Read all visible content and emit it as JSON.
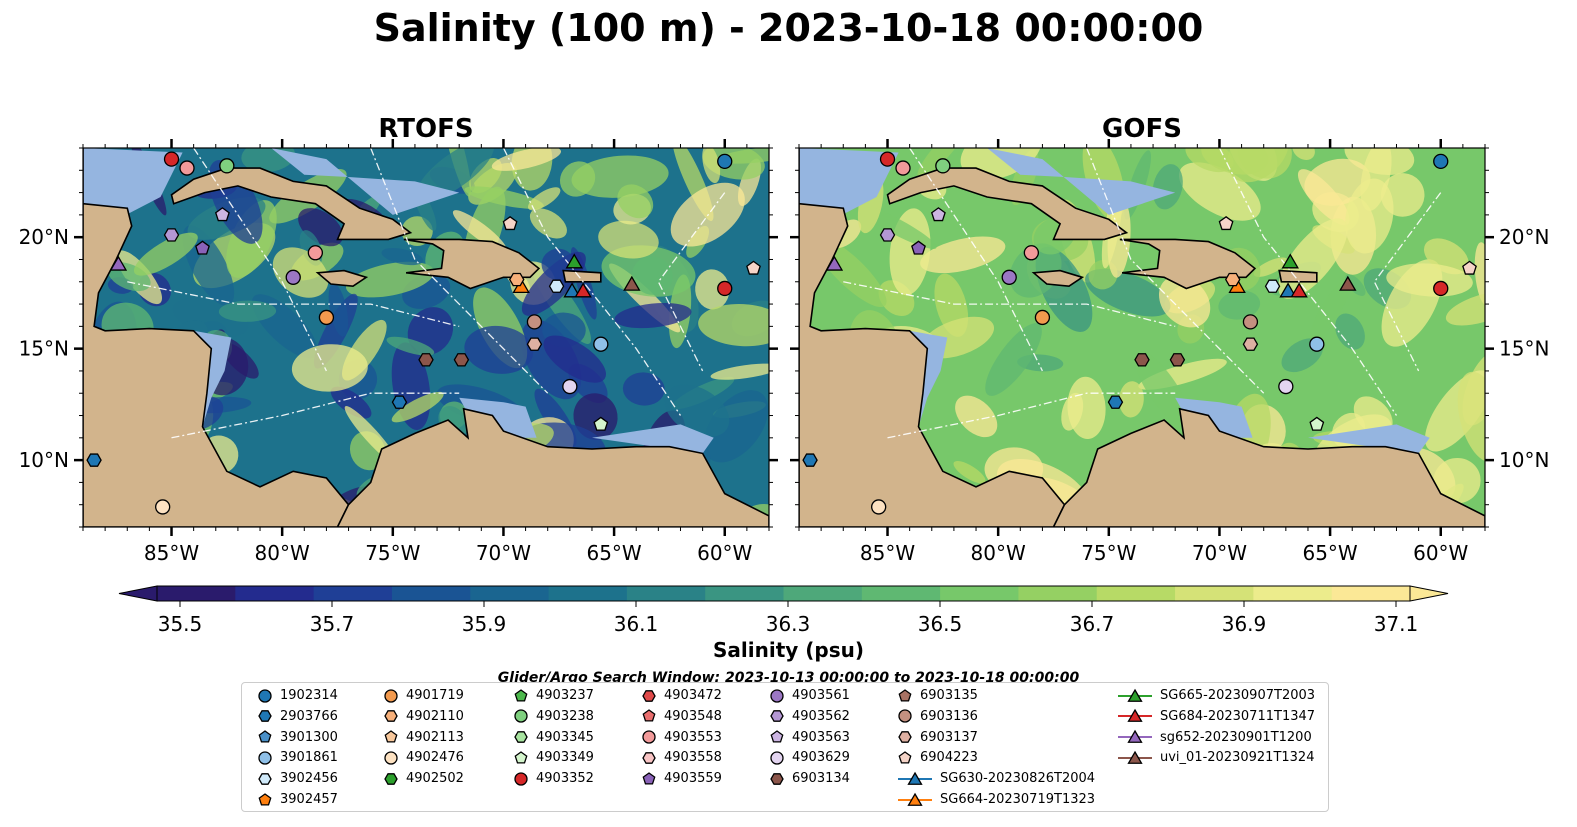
{
  "title": "Salinity (100 m) - 2023-10-18 00:00:00",
  "panels": [
    {
      "name": "RTOFS"
    },
    {
      "name": "GOFS"
    }
  ],
  "colors": {
    "land": "#d2b48c",
    "shelf": "#95b5e0",
    "deep_ocean": "#2a1b6c",
    "colormap": [
      "#2a1b6c",
      "#232b8e",
      "#1f3f96",
      "#1a5494",
      "#1a6590",
      "#1d728c",
      "#2a8287",
      "#3a9582",
      "#4ea87a",
      "#5fb872",
      "#77c86a",
      "#95d063",
      "#b7da66",
      "#d5e277",
      "#ecec8c",
      "#fbe896"
    ]
  },
  "chart_data": [
    {
      "type": "heatmap",
      "title": "RTOFS",
      "xlabel": "",
      "ylabel": "",
      "x_ticks": [
        "85°W",
        "80°W",
        "75°W",
        "70°W",
        "65°W",
        "60°W"
      ],
      "y_ticks": [
        "20°N",
        "15°N",
        "10°N"
      ],
      "x_tick_values": [
        -85,
        -80,
        -75,
        -70,
        -65,
        -60
      ],
      "y_tick_values": [
        20,
        15,
        10
      ],
      "xlim": [
        -89,
        -58
      ],
      "ylim": [
        7,
        24
      ]
    },
    {
      "type": "heatmap",
      "title": "GOFS",
      "xlabel": "",
      "ylabel": "",
      "x_ticks": [
        "85°W",
        "80°W",
        "75°W",
        "70°W",
        "65°W",
        "60°W"
      ],
      "y_ticks": [
        "20°N",
        "15°N",
        "10°N"
      ],
      "x_tick_values": [
        -85,
        -80,
        -75,
        -70,
        -65,
        -60
      ],
      "y_tick_values": [
        20,
        15,
        10
      ],
      "xlim": [
        -89,
        -58
      ],
      "ylim": [
        7,
        24
      ]
    }
  ],
  "colorbar": {
    "label": "Salinity (psu)",
    "ticks": [
      "35.5",
      "35.7",
      "35.9",
      "36.1",
      "36.3",
      "36.5",
      "36.7",
      "36.9",
      "37.1"
    ],
    "range": [
      35.5,
      37.2
    ]
  },
  "search_window": "Glider/Argo Search Window: 2023-10-13 00:00:00 to 2023-10-18 00:00:00",
  "legend": [
    {
      "label": "1902314",
      "marker": "circle",
      "color": "#1f77b4"
    },
    {
      "label": "2903766",
      "marker": "hexagon",
      "color": "#1f77b4"
    },
    {
      "label": "3901300",
      "marker": "pentagon",
      "color": "#4a90c8"
    },
    {
      "label": "3901861",
      "marker": "circle",
      "color": "#8fc0e8"
    },
    {
      "label": "3902456",
      "marker": "hexagon",
      "color": "#d0eafa"
    },
    {
      "label": "3902457",
      "marker": "pentagon",
      "color": "#ff7f0e"
    },
    {
      "label": "4901719",
      "marker": "circle",
      "color": "#f39a4e"
    },
    {
      "label": "4902110",
      "marker": "hexagon",
      "color": "#f7b07a"
    },
    {
      "label": "4902113",
      "marker": "pentagon",
      "color": "#f8c89c"
    },
    {
      "label": "4902476",
      "marker": "circle",
      "color": "#fde2c2"
    },
    {
      "label": "4902502",
      "marker": "hexagon",
      "color": "#2ca02c"
    },
    {
      "label": "4903237",
      "marker": "pentagon",
      "color": "#4cb84c"
    },
    {
      "label": "4903238",
      "marker": "circle",
      "color": "#7fd07f"
    },
    {
      "label": "4903345",
      "marker": "hexagon",
      "color": "#a8e4a0"
    },
    {
      "label": "4903349",
      "marker": "pentagon",
      "color": "#d4f5cc"
    },
    {
      "label": "4903352",
      "marker": "circle",
      "color": "#d62728"
    },
    {
      "label": "4903472",
      "marker": "hexagon",
      "color": "#e04a4a"
    },
    {
      "label": "4903548",
      "marker": "pentagon",
      "color": "#ea6f6f"
    },
    {
      "label": "4903553",
      "marker": "circle",
      "color": "#f29a9a"
    },
    {
      "label": "4903558",
      "marker": "hexagon",
      "color": "#f8c4c4"
    },
    {
      "label": "4903559",
      "marker": "pentagon",
      "color": "#8a62b8"
    },
    {
      "label": "4903561",
      "marker": "circle",
      "color": "#9b77c4"
    },
    {
      "label": "4903562",
      "marker": "hexagon",
      "color": "#b497d4"
    },
    {
      "label": "4903563",
      "marker": "pentagon",
      "color": "#ccb5e2"
    },
    {
      "label": "4903629",
      "marker": "circle",
      "color": "#e3d4f0"
    },
    {
      "label": "6903134",
      "marker": "hexagon",
      "color": "#8c564b"
    },
    {
      "label": "6903135",
      "marker": "pentagon",
      "color": "#a87264"
    },
    {
      "label": "6903136",
      "marker": "circle",
      "color": "#c49080"
    },
    {
      "label": "6903137",
      "marker": "hexagon",
      "color": "#deb0a2"
    },
    {
      "label": "6904223",
      "marker": "pentagon",
      "color": "#f5d4c8"
    },
    {
      "label": "SG630-20230826T2004",
      "marker": "triangle-line",
      "color": "#1f77b4"
    },
    {
      "label": "SG664-20230719T1323",
      "marker": "triangle-line",
      "color": "#ff7f0e"
    },
    {
      "label": "SG665-20230907T2003",
      "marker": "triangle-line",
      "color": "#2ca02c"
    },
    {
      "label": "SG684-20230711T1347",
      "marker": "triangle-line",
      "color": "#d62728"
    },
    {
      "label": "sg652-20230901T1200",
      "marker": "triangle-line",
      "color": "#9467bd"
    },
    {
      "label": "uvi_01-20230921T1324",
      "marker": "triangle-line",
      "color": "#8c564b"
    }
  ],
  "map_markers": [
    {
      "id": "1902314",
      "lon": -60.0,
      "lat": 23.4
    },
    {
      "id": "4903352",
      "lon": -85.0,
      "lat": 23.5
    },
    {
      "id": "4903553",
      "lon": -84.3,
      "lat": 23.1
    },
    {
      "id": "4903238",
      "lon": -82.5,
      "lat": 23.2
    },
    {
      "id": "4903563",
      "lon": -82.7,
      "lat": 21.0
    },
    {
      "id": "4903562",
      "lon": -85.0,
      "lat": 20.1
    },
    {
      "id": "4903559",
      "lon": -83.6,
      "lat": 19.5
    },
    {
      "id": "sg652-20230901T1200",
      "lon": -87.4,
      "lat": 18.8
    },
    {
      "id": "4903561",
      "lon": -79.5,
      "lat": 18.2
    },
    {
      "id": "4903553",
      "lon": -78.5,
      "lat": 19.3
    },
    {
      "id": "6904223",
      "lon": -69.7,
      "lat": 20.6
    },
    {
      "id": "4901719",
      "lon": -78.0,
      "lat": 16.4
    },
    {
      "id": "6903134",
      "lon": -73.5,
      "lat": 14.5
    },
    {
      "id": "6903134",
      "lon": -71.9,
      "lat": 14.5
    },
    {
      "id": "2903766",
      "lon": -74.7,
      "lat": 12.6
    },
    {
      "id": "SG664-20230719T1323",
      "lon": -69.2,
      "lat": 17.8
    },
    {
      "id": "4902110",
      "lon": -69.4,
      "lat": 18.1
    },
    {
      "id": "SG665-20230907T2003",
      "lon": -66.8,
      "lat": 18.9
    },
    {
      "id": "3902456",
      "lon": -67.6,
      "lat": 17.8
    },
    {
      "id": "SG630-20230826T2004",
      "lon": -66.9,
      "lat": 17.6
    },
    {
      "id": "SG684-20230711T1347",
      "lon": -66.4,
      "lat": 17.6
    },
    {
      "id": "uvi_01-20230921T1324",
      "lon": -64.2,
      "lat": 17.9
    },
    {
      "id": "4903352",
      "lon": -60.0,
      "lat": 17.7
    },
    {
      "id": "6904223",
      "lon": -58.7,
      "lat": 18.6
    },
    {
      "id": "6903136",
      "lon": -68.6,
      "lat": 16.2
    },
    {
      "id": "6903137",
      "lon": -68.6,
      "lat": 15.2
    },
    {
      "id": "3901861",
      "lon": -65.6,
      "lat": 15.2
    },
    {
      "id": "4903629",
      "lon": -67.0,
      "lat": 13.3
    },
    {
      "id": "4903349",
      "lon": -65.6,
      "lat": 11.6
    },
    {
      "id": "2903766",
      "lon": -88.5,
      "lat": 10.0
    },
    {
      "id": "4902476",
      "lon": -85.4,
      "lat": 7.9
    }
  ]
}
